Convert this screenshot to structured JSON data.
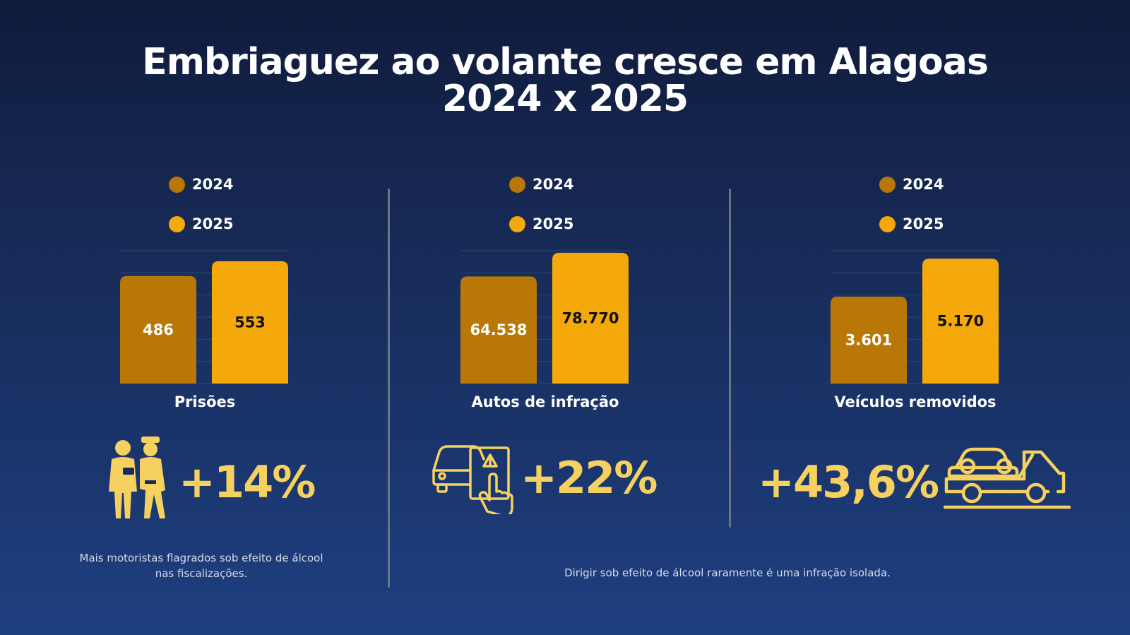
{
  "title_line1": "Embriaguez ao volante cresce em Alagoas",
  "title_line2": "2024 x 2025",
  "colors": {
    "year_2024": "#b97805",
    "year_2025": "#f4a80a",
    "percent": "#f6d160",
    "background": "#172b58"
  },
  "legend": [
    "2024",
    "2025"
  ],
  "chart_data": [
    {
      "type": "bar",
      "title": "Prisões",
      "categories": [
        "2024",
        "2025"
      ],
      "values": [
        486,
        553
      ],
      "value_labels": [
        "486",
        "553"
      ],
      "ylim": [
        0,
        600
      ],
      "change_label": "+14%",
      "icon": "police-arrest-icon"
    },
    {
      "type": "bar",
      "title": "Autos de infração",
      "categories": [
        "2024",
        "2025"
      ],
      "values": [
        64538,
        78770
      ],
      "value_labels": [
        "64.538",
        "78.770"
      ],
      "ylim": [
        0,
        80000
      ],
      "change_label": "+22%",
      "icon": "car-ticket-icon"
    },
    {
      "type": "bar",
      "title": "Veículos removidos",
      "categories": [
        "2024",
        "2025"
      ],
      "values": [
        3601,
        5170
      ],
      "value_labels": [
        "3.601",
        "5.170"
      ],
      "ylim": [
        0,
        5500
      ],
      "change_label": "+43,6%",
      "icon": "tow-truck-icon"
    }
  ],
  "notes": {
    "left": "Mais motoristas flagrados sob efeito de álcool nas fiscalizações.",
    "right": "Dirigir sob efeito de álcool raramente é uma infração isolada."
  }
}
